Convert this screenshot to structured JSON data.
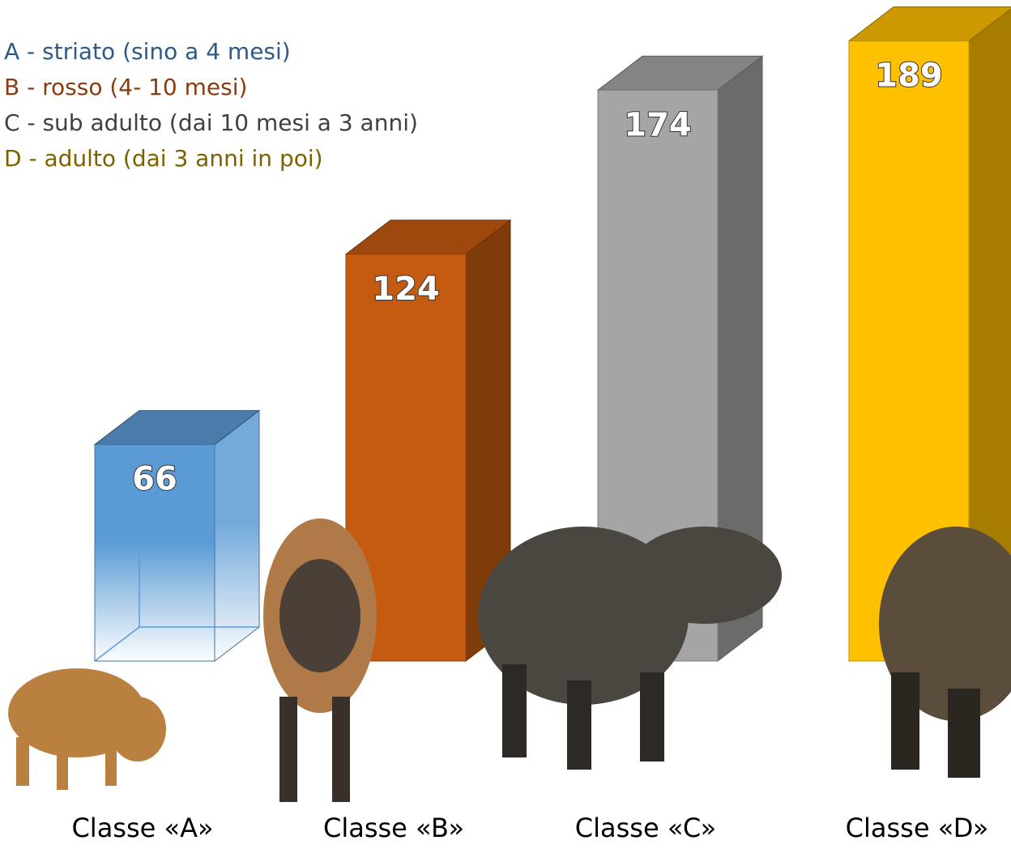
{
  "chart_data": {
    "type": "bar",
    "annotations": [
      "A - striato (sino a 4 mesi)",
      "B - rosso (4- 10 mesi)",
      "C - sub adulto (dai 10 mesi a 3 anni)",
      "D - adulto (dai 3 anni in poi)"
    ],
    "annotation_colors": [
      "#2e5a88",
      "#8a3c0e",
      "#404040",
      "#7f6000"
    ],
    "categories": [
      "Classe «A»",
      "Classe «B»",
      "Classe «C»",
      "Classe «D»"
    ],
    "values": [
      66,
      124,
      174,
      189
    ],
    "colors": [
      "#5b9bd5",
      "#c55a11",
      "#a5a5a5",
      "#ffc000"
    ]
  }
}
